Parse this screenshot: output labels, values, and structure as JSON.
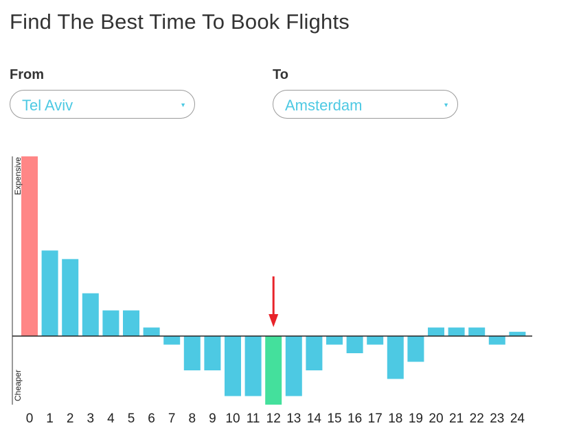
{
  "page": {
    "title": "Find The Best Time To Book Flights"
  },
  "from": {
    "label": "From",
    "value": "Tel Aviv"
  },
  "to": {
    "label": "To",
    "value": "Amsterdam"
  },
  "colors": {
    "accent": "#4dc9e3",
    "highlight": "#44e09c",
    "expensive": "#ff8686",
    "marker": "#e8232a"
  },
  "icons": {
    "dropdown": "triangle-down-icon",
    "marker": "arrow-down-icon"
  },
  "chart_data": {
    "type": "bar",
    "categories": [
      "0",
      "1",
      "2",
      "3",
      "4",
      "5",
      "6",
      "7",
      "8",
      "9",
      "10",
      "11",
      "12",
      "13",
      "14",
      "15",
      "16",
      "17",
      "18",
      "19",
      "20",
      "21",
      "22",
      "23",
      "24"
    ],
    "values": [
      21,
      10,
      9,
      5,
      3,
      3,
      1,
      -1,
      -4,
      -4,
      -7,
      -7,
      -8,
      -7,
      -4,
      -1,
      -2,
      -1,
      -5,
      -3,
      1,
      1,
      1,
      -1,
      0.5
    ],
    "ylim": [
      -8,
      21
    ],
    "y_top_label": "Expensive",
    "y_bottom_label": "Cheaper",
    "highlight_index": 0,
    "best_index": 12,
    "grid": false
  }
}
